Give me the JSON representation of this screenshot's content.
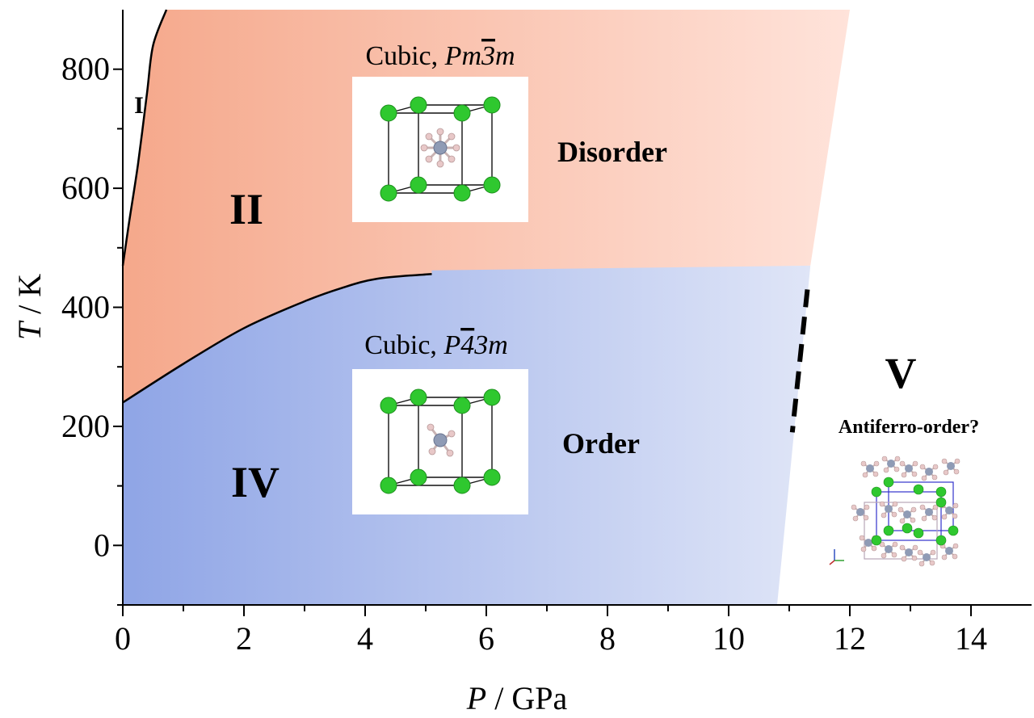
{
  "chart_data": {
    "type": "area",
    "xlabel": {
      "italic": "P",
      "rest": " / GPa"
    },
    "ylabel": {
      "italic": "T",
      "rest": " / K"
    },
    "xlim": [
      0,
      15
    ],
    "ylim": [
      -100,
      900
    ],
    "x_ticks": [
      "0",
      "2",
      "4",
      "6",
      "8",
      "10",
      "12",
      "14"
    ],
    "y_ticks": [
      "0",
      "200",
      "400",
      "600",
      "800"
    ],
    "x_tick_values": [
      0,
      2,
      4,
      6,
      8,
      10,
      12,
      14
    ],
    "y_tick_values": [
      0,
      200,
      400,
      600,
      800
    ],
    "x_minor_ticks": [
      1,
      3,
      5,
      7,
      9,
      11,
      13
    ],
    "phases": [
      {
        "id": "I",
        "label": "I"
      },
      {
        "id": "II",
        "label": "II",
        "descriptor": "Disorder",
        "structure": {
          "prefix": "Cubic, ",
          "space_group": "Pm3m",
          "overbar_char_index": 2
        }
      },
      {
        "id": "IV",
        "label": "IV",
        "descriptor": "Order",
        "structure": {
          "prefix": "Cubic, ",
          "space_group": "P43m",
          "overbar_char_index": 1
        }
      },
      {
        "id": "V",
        "label": "V",
        "descriptor": "Antiferro-order?"
      }
    ],
    "boundaries": [
      {
        "name": "I-II",
        "points": [
          [
            0.0,
            470
          ],
          [
            0.1,
            540
          ],
          [
            0.25,
            640
          ],
          [
            0.4,
            760
          ],
          [
            0.5,
            840
          ],
          [
            0.72,
            900
          ]
        ]
      },
      {
        "name": "II-IV",
        "points": [
          [
            0.0,
            240
          ],
          [
            1.0,
            305
          ],
          [
            2.0,
            365
          ],
          [
            3.0,
            410
          ],
          [
            3.6,
            432
          ],
          [
            4.2,
            448
          ],
          [
            5.1,
            456
          ]
        ]
      },
      {
        "name": "IV-V",
        "style": "dashed",
        "points": [
          [
            11.3,
            430
          ],
          [
            11.05,
            190
          ]
        ]
      }
    ],
    "region_II_upper_edge": [
      [
        0.72,
        900
      ],
      [
        12.0,
        900
      ],
      [
        11.35,
        470
      ]
    ],
    "region_IV_right_edge": [
      [
        11.35,
        470
      ],
      [
        10.8,
        -100
      ]
    ],
    "colors": {
      "phase_II_left": "#f5a88b",
      "phase_II_right": "#ffe3da",
      "phase_IV_left": "#8fa5e6",
      "phase_IV_right": "#dfe5f7",
      "boundary": "#000000",
      "chlorine_atom": "#2fc82f",
      "nitrogen_atom": "#8f9bb5",
      "hydrogen_atom": "#e8c8c8",
      "cell_edge": "#111111",
      "supercell_edge": "#3333cc"
    },
    "grid": false,
    "legend": "none"
  }
}
